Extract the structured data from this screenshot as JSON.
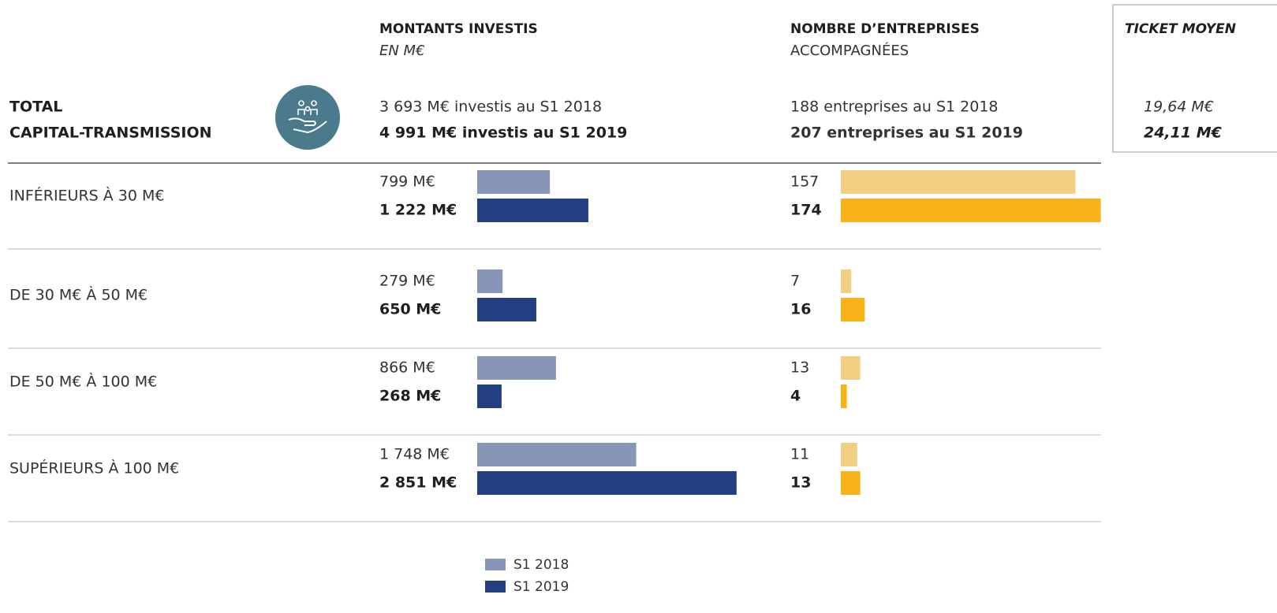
{
  "headers": {
    "amounts": {
      "title": "MONTANTS INVESTIS",
      "subtitle": "EN M€"
    },
    "companies": {
      "title": "NOMBRE D’ENTREPRISES",
      "subtitle": "ACCOMPAGNÉES"
    },
    "ticket": {
      "title": "TICKET MOYEN"
    }
  },
  "total": {
    "label": [
      "TOTAL",
      "CAPITAL-TRANSMISSION"
    ],
    "amounts": [
      "3 693  M€ investis au S1 2018",
      "4 991 M€ investis au S1 2019"
    ],
    "companies": [
      "188 entreprises au S1 2018",
      "207 entreprises au S1 2019"
    ],
    "ticket": [
      "19,64 M€",
      "24,11 M€"
    ]
  },
  "chart_data": [
    {
      "type": "bar",
      "orientation": "horizontal",
      "categories": [
        "INFÉRIEURS À 30 M€",
        "DE 30 M€ À 50 M€",
        "DE 50 M€ À 100 M€",
        "SUPÉRIEURS À 100 M€"
      ],
      "xlim": [
        0,
        3000
      ],
      "series": [
        {
          "name": "S1 2018",
          "color": "#8795b8",
          "values": [
            799,
            279,
            866,
            1748
          ],
          "value_labels": [
            "799 M€",
            "279 M€",
            "866 M€",
            "1 748 M€"
          ]
        },
        {
          "name": "S1 2019",
          "color": "#223f80",
          "values": [
            1222,
            650,
            268,
            2851
          ],
          "value_labels": [
            "1 222 M€",
            "650 M€",
            "268 M€",
            "2 851 M€"
          ]
        }
      ]
    },
    {
      "type": "bar",
      "orientation": "horizontal",
      "xlim": [
        0,
        180
      ],
      "series": [
        {
          "color": "#f1cf82",
          "values": [
            157,
            7,
            13,
            11
          ]
        },
        {
          "color": "#f8b31b",
          "values": [
            174,
            16,
            4,
            13
          ]
        }
      ]
    }
  ]
}
